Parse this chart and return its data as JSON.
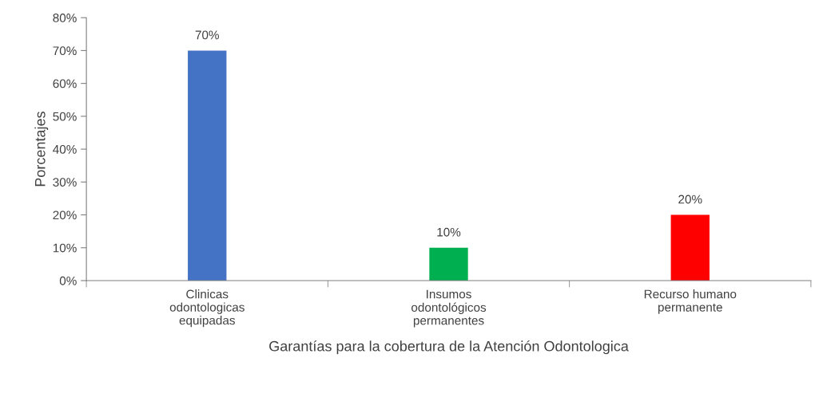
{
  "chart_data": {
    "type": "bar",
    "xlabel": "Garantías para la cobertura de la Atención Odontologica",
    "ylabel": "Porcentajes",
    "categories": [
      "Clinicas\nodontologicas\nequipadas",
      "Insumos\nodontológicos\npermanentes",
      "Recurso humano\npermanente"
    ],
    "values": [
      70,
      10,
      20
    ],
    "colors": [
      "#4472c4",
      "#00b050",
      "#ff0000"
    ],
    "value_labels": [
      "70%",
      "10%",
      "20%"
    ],
    "ylim": [
      0,
      80
    ],
    "yticks": [
      {
        "value": 0,
        "label": "0%"
      },
      {
        "value": 10,
        "label": "10%"
      },
      {
        "value": 20,
        "label": "20%"
      },
      {
        "value": 30,
        "label": "30%"
      },
      {
        "value": 40,
        "label": "40%"
      },
      {
        "value": 50,
        "label": "50%"
      },
      {
        "value": 60,
        "label": "60%"
      },
      {
        "value": 70,
        "label": "70%"
      },
      {
        "value": 80,
        "label": "80%"
      }
    ],
    "grid": false,
    "legend": false
  }
}
